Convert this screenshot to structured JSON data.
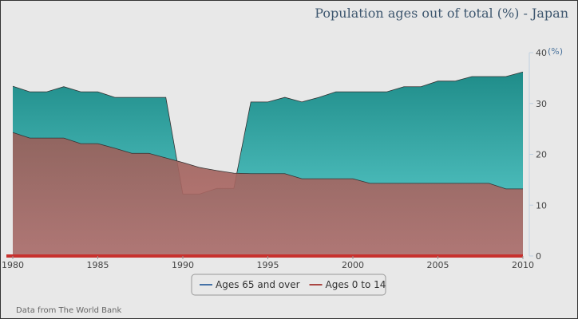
{
  "chart_data": {
    "type": "area",
    "title": "Population ages out of total (%) - Japan",
    "y_label": "(%)",
    "source": "Data from The World Bank",
    "x": [
      1980,
      1981,
      1982,
      1983,
      1984,
      1985,
      1986,
      1987,
      1988,
      1989,
      1990,
      1991,
      1992,
      1993,
      1994,
      1995,
      1996,
      1997,
      1998,
      1999,
      2000,
      2001,
      2002,
      2003,
      2004,
      2005,
      2006,
      2007,
      2008,
      2009,
      2010
    ],
    "xlim": [
      1980,
      2010
    ],
    "xticks": [
      1980,
      1985,
      1990,
      1995,
      2000,
      2005,
      2010
    ],
    "ylim": [
      0,
      40
    ],
    "yticks": [
      0,
      10,
      20,
      30,
      40
    ],
    "y_axis_side": "right",
    "series": [
      {
        "name": "Ages 65 and over",
        "color": "#4572a7",
        "fill": [
          "#1f8c89",
          "#62d4d4"
        ],
        "fill_opacity": 1,
        "values": [
          33.4,
          32.3,
          32.3,
          33.3,
          32.3,
          32.3,
          31.2,
          31.2,
          31.2,
          31.2,
          12.2,
          12.2,
          13.3,
          13.3,
          30.3,
          30.3,
          31.2,
          30.3,
          31.2,
          32.3,
          32.3,
          32.3,
          32.3,
          33.3,
          33.3,
          34.4,
          34.4,
          35.3,
          35.3,
          35.3,
          36.2
        ]
      },
      {
        "name": "Ages 0 to 14",
        "color": "#aa4643",
        "fill": [
          "#9a5e58",
          "#b86d6b"
        ],
        "fill_opacity": 0.9,
        "values": [
          24.3,
          23.2,
          23.2,
          23.2,
          22.1,
          22.1,
          21.2,
          20.2,
          20.2,
          19.3,
          18.4,
          17.4,
          16.8,
          16.3,
          16.2,
          16.2,
          16.2,
          15.2,
          15.2,
          15.2,
          15.2,
          14.3,
          14.3,
          14.3,
          14.3,
          14.3,
          14.3,
          14.3,
          14.3,
          13.2,
          13.2
        ]
      }
    ]
  }
}
